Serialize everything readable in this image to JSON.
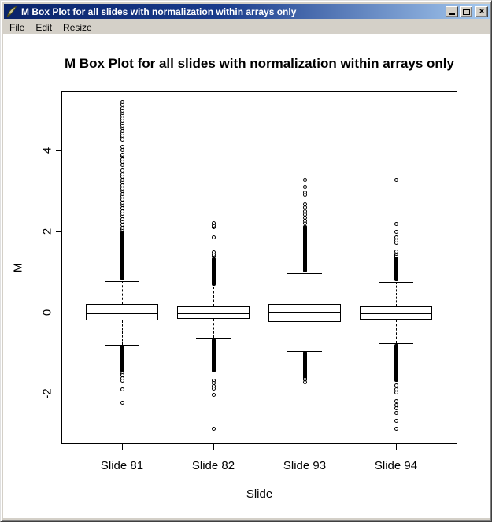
{
  "window": {
    "title": "M Box Plot for all slides with normalization within arrays only",
    "icon": "quill-feather-icon",
    "menu": [
      "File",
      "Edit",
      "Resize"
    ],
    "controls": {
      "minimize": "minimize",
      "maximize": "maximize",
      "close_glyph": "×"
    }
  },
  "colors": {
    "titlebar_left": "#0a246a",
    "titlebar_right": "#a6caf0",
    "titlebar_text": "#ffffff",
    "chrome": "#d4d0c8",
    "plot_background": "#ffffff",
    "ink": "#000000"
  },
  "chart_data": {
    "type": "boxplot",
    "title": "M Box Plot for all slides with normalization within arrays only",
    "xlabel": "Slide",
    "ylabel": "M",
    "ylim": [
      -3.24,
      5.45
    ],
    "yticks": [
      -2,
      0,
      2,
      4
    ],
    "reference_line": 0,
    "grid": false,
    "categories": [
      "Slide 81",
      "Slide 82",
      "Slide 93",
      "Slide 94"
    ],
    "boxes": [
      {
        "label": "Slide 81",
        "whisker_low": -0.79,
        "q1": -0.2,
        "median": -0.02,
        "q3": 0.21,
        "whisker_high": 0.78,
        "outlier_bands": [
          [
            0.8,
            2.02
          ],
          [
            -1.47,
            -0.8
          ]
        ],
        "outliers": [
          2.05,
          2.1,
          2.17,
          2.24,
          2.31,
          2.38,
          2.45,
          2.51,
          2.58,
          2.65,
          2.72,
          2.8,
          2.87,
          2.93,
          3.0,
          3.07,
          3.14,
          3.21,
          3.28,
          3.35,
          3.42,
          3.51,
          3.64,
          3.72,
          3.78,
          3.85,
          3.9,
          4.02,
          4.09,
          4.26,
          4.32,
          4.36,
          4.42,
          4.48,
          4.55,
          4.62,
          4.68,
          4.74,
          4.8,
          4.86,
          4.92,
          4.98,
          5.04,
          5.13,
          5.19,
          -1.49,
          -1.53,
          -1.61,
          -1.67,
          -1.88,
          -2.21
        ]
      },
      {
        "label": "Slide 82",
        "whisker_low": -0.62,
        "q1": -0.165,
        "median": -0.025,
        "q3": 0.145,
        "whisker_high": 0.64,
        "outlier_bands": [
          [
            0.66,
            1.35
          ],
          [
            -1.47,
            -0.64
          ]
        ],
        "outliers": [
          1.4,
          1.44,
          1.49,
          1.86,
          2.11,
          2.16,
          2.21,
          -1.67,
          -1.73,
          -1.8,
          -1.86,
          -2.02,
          -2.85
        ]
      },
      {
        "label": "Slide 93",
        "whisker_low": -0.95,
        "q1": -0.225,
        "median": 0.0,
        "q3": 0.21,
        "whisker_high": 0.97,
        "outlier_bands": [
          [
            0.98,
            2.15
          ],
          [
            -1.69,
            -0.96
          ]
        ],
        "outliers": [
          2.21,
          2.27,
          2.34,
          2.42,
          2.5,
          2.6,
          2.67,
          2.9,
          2.97,
          3.1,
          3.27,
          -1.63,
          -1.71
        ]
      },
      {
        "label": "Slide 94",
        "whisker_low": -0.76,
        "q1": -0.175,
        "median": -0.02,
        "q3": 0.155,
        "whisker_high": 0.76,
        "outlier_bands": [
          [
            0.78,
            1.47
          ],
          [
            -1.7,
            -0.78
          ]
        ],
        "outliers": [
          1.4,
          1.45,
          1.51,
          1.73,
          1.79,
          1.86,
          2.0,
          2.19,
          3.27,
          -1.79,
          -1.88,
          -1.96,
          -2.17,
          -2.27,
          -2.35,
          -2.47,
          -2.66,
          -2.85
        ]
      }
    ]
  }
}
